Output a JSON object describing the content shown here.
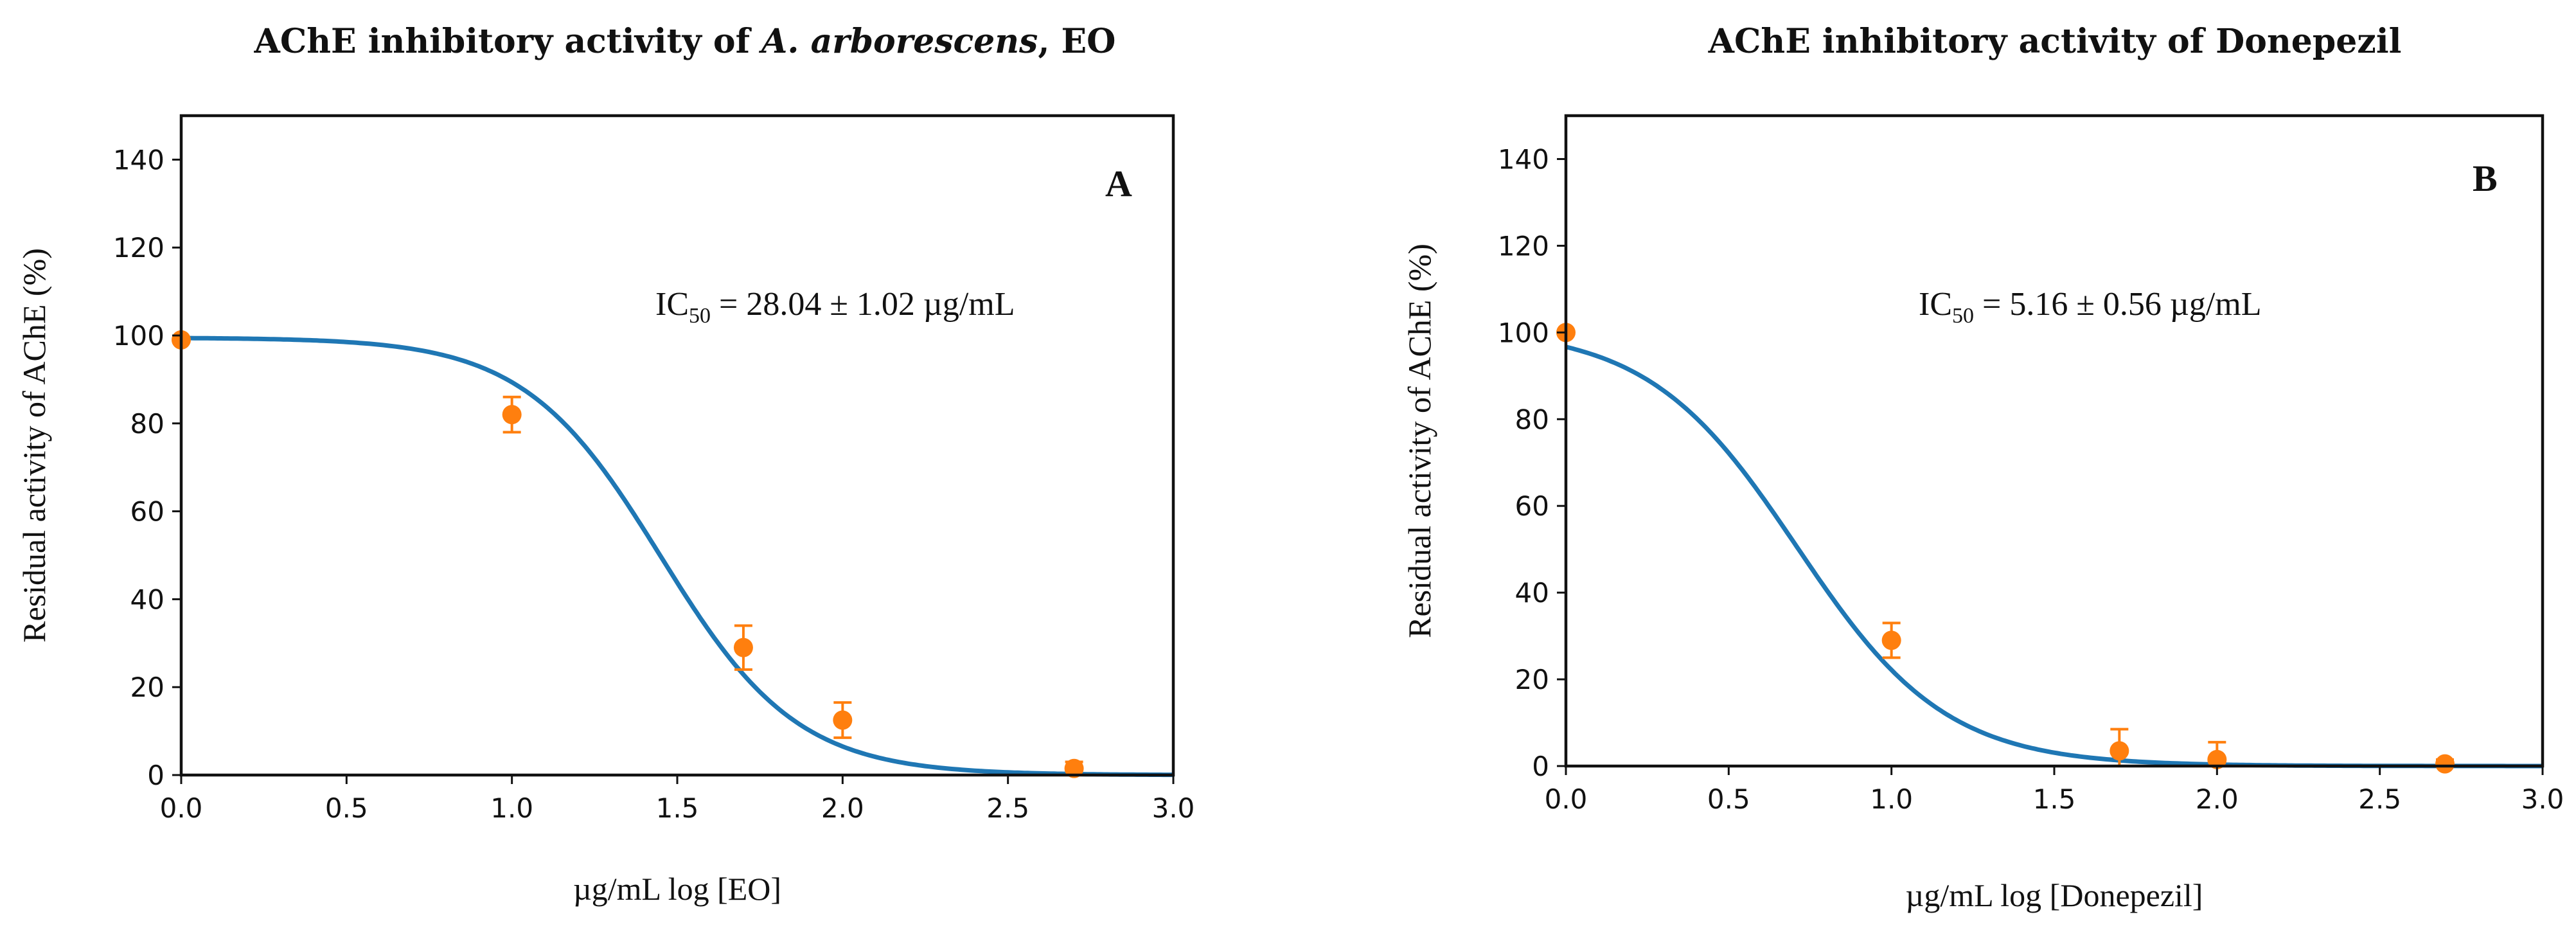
{
  "chart_data": [
    {
      "type": "scatter",
      "panel": "A",
      "title_parts": [
        "AChE inhibitory activity of ",
        "A. arborescens",
        ", EO"
      ],
      "xlabel": "µg/mL log [EO]",
      "ylabel": "Residual activity of AChE (%)",
      "xlim": [
        0,
        3
      ],
      "ylim": [
        0,
        150
      ],
      "xticks": [
        "0.0",
        "0.5",
        "1.0",
        "1.5",
        "2.0",
        "2.5",
        "3.0"
      ],
      "yticks": [
        "0",
        "20",
        "40",
        "60",
        "80",
        "100",
        "120",
        "140"
      ],
      "annotation_parts": [
        "IC",
        "50",
        " = 28.04 ± 1.02 µg/mL"
      ],
      "points": [
        {
          "x": 0.0,
          "y": 99,
          "err": 0
        },
        {
          "x": 1.0,
          "y": 82,
          "err": 4
        },
        {
          "x": 1.7,
          "y": 29,
          "err": 5
        },
        {
          "x": 2.0,
          "y": 12.5,
          "err": 4
        },
        {
          "x": 2.7,
          "y": 1.5,
          "err": 1.5
        }
      ],
      "fit": {
        "top": 99.5,
        "log_ic50": 1.45,
        "hill": 2.1
      },
      "colors": {
        "points": "#ff7f0e",
        "fit": "#1f77b4"
      }
    },
    {
      "type": "scatter",
      "panel": "B",
      "title_parts": [
        "AChE inhibitory activity of Donepezil"
      ],
      "xlabel": "µg/mL log [Donepezil]",
      "ylabel": "Residual activity of AChE (%)",
      "xlim": [
        0,
        3
      ],
      "ylim": [
        0,
        150
      ],
      "xticks": [
        "0.0",
        "0.5",
        "1.0",
        "1.5",
        "2.0",
        "2.5",
        "3.0"
      ],
      "yticks": [
        "0",
        "20",
        "40",
        "60",
        "80",
        "100",
        "120",
        "140"
      ],
      "annotation_parts": [
        "IC",
        "50",
        " = 5.16 ± 0.56 µg/mL"
      ],
      "points": [
        {
          "x": 0.0,
          "y": 100,
          "err": 0
        },
        {
          "x": 1.0,
          "y": 29,
          "err": 4
        },
        {
          "x": 1.7,
          "y": 3.5,
          "err": 5
        },
        {
          "x": 2.0,
          "y": 1.5,
          "err": 4
        },
        {
          "x": 2.7,
          "y": 0.5,
          "err": 1
        }
      ],
      "fit": {
        "top": 101,
        "log_ic50": 0.71,
        "hill": 1.9
      },
      "colors": {
        "points": "#ff7f0e",
        "fit": "#1f77b4"
      }
    }
  ]
}
